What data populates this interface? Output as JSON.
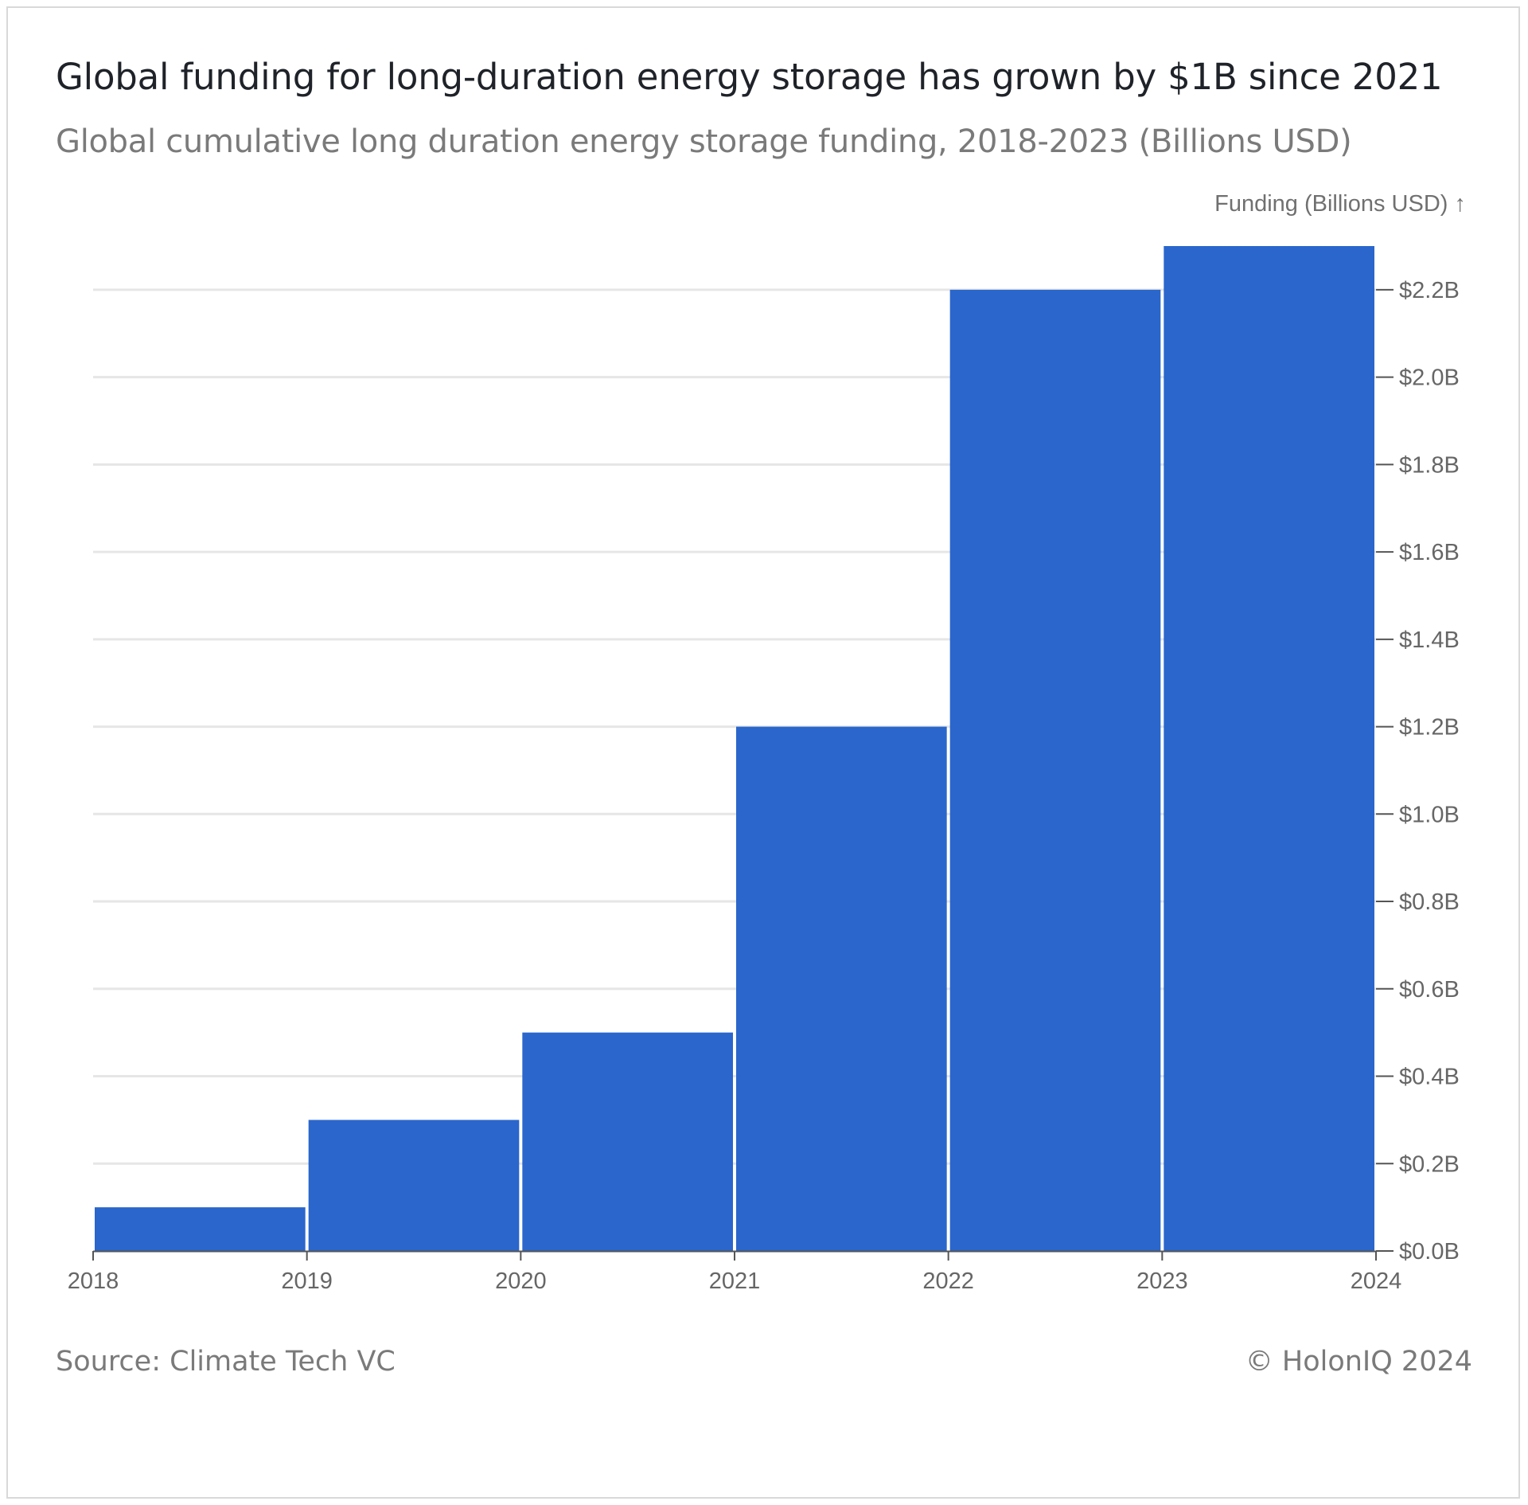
{
  "header": {
    "title": "Global funding for long-duration energy storage has grown by $1B since 2021",
    "subtitle": "Global cumulative long duration energy storage funding, 2018-2023 (Billions USD)"
  },
  "footer": {
    "source": "Source: Climate Tech VC",
    "credit": "© HolonIQ 2024"
  },
  "colors": {
    "bar": "#2a66cc",
    "grid": "#e6e6e6",
    "axis": "#555555",
    "tick_text": "#666666"
  },
  "chart_data": {
    "type": "bar",
    "title": "Global funding for long-duration energy storage has grown by $1B since 2021",
    "subtitle": "Global cumulative long duration energy storage funding, 2018-2023 (Billions USD)",
    "ylabel": "Funding (Billions USD) ↑",
    "xlabel": "",
    "x_ticks": [
      "2018",
      "2019",
      "2020",
      "2021",
      "2022",
      "2023",
      "2024"
    ],
    "bins": [
      {
        "start": 2018,
        "end": 2019,
        "value": 0.1
      },
      {
        "start": 2019,
        "end": 2020,
        "value": 0.3
      },
      {
        "start": 2020,
        "end": 2021,
        "value": 0.5
      },
      {
        "start": 2021,
        "end": 2022,
        "value": 1.2
      },
      {
        "start": 2022,
        "end": 2023,
        "value": 2.2
      },
      {
        "start": 2023,
        "end": 2024,
        "value": 2.3
      }
    ],
    "xlim": [
      2018,
      2024
    ],
    "ylim": [
      0,
      2.3
    ],
    "y_ticks": [
      {
        "value": 0.0,
        "label": "$0.0B"
      },
      {
        "value": 0.2,
        "label": "$0.2B"
      },
      {
        "value": 0.4,
        "label": "$0.4B"
      },
      {
        "value": 0.6,
        "label": "$0.6B"
      },
      {
        "value": 0.8,
        "label": "$0.8B"
      },
      {
        "value": 1.0,
        "label": "$1.0B"
      },
      {
        "value": 1.2,
        "label": "$1.2B"
      },
      {
        "value": 1.4,
        "label": "$1.4B"
      },
      {
        "value": 1.6,
        "label": "$1.6B"
      },
      {
        "value": 1.8,
        "label": "$1.8B"
      },
      {
        "value": 2.0,
        "label": "$2.0B"
      },
      {
        "value": 2.2,
        "label": "$2.2B"
      }
    ],
    "y_axis_side": "right",
    "grid": true,
    "legend": "none"
  }
}
